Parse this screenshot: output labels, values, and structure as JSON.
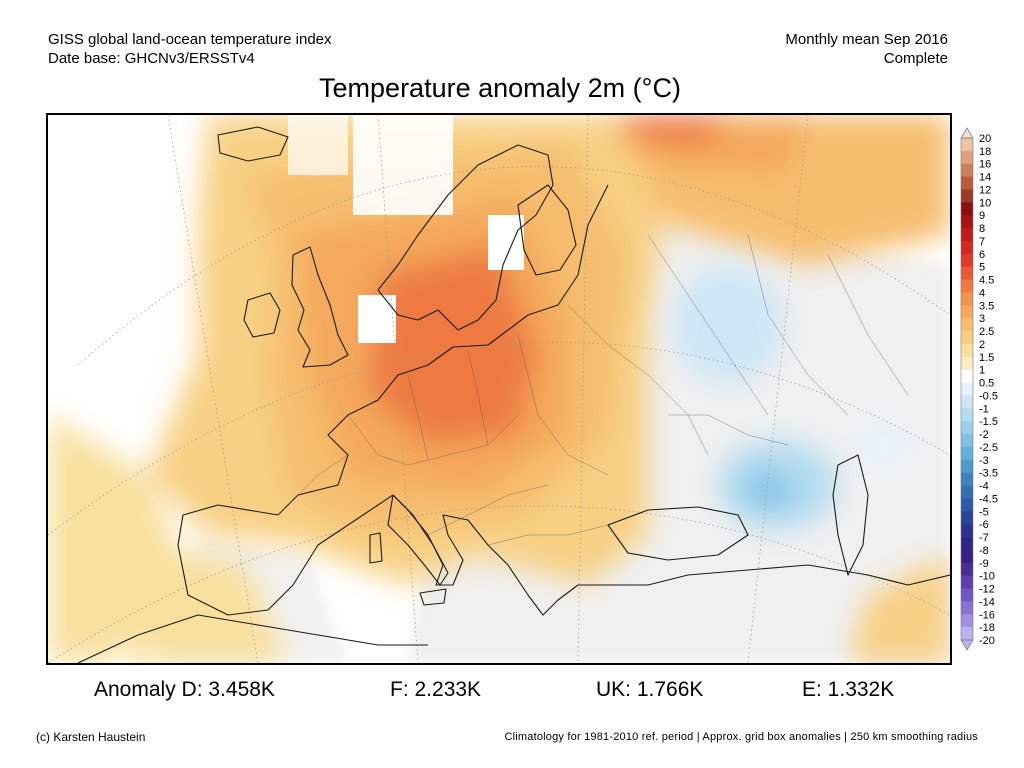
{
  "header": {
    "left_line1": "GISS global land-ocean temperature index",
    "left_line2": "Date base: GHCNv3/ERSSTv4",
    "right_line1": "Monthly mean Sep 2016",
    "right_line2": "Complete"
  },
  "title": "Temperature anomaly 2m (°C)",
  "legend": {
    "labels": [
      "20",
      "18",
      "16",
      "14",
      "12",
      "10",
      "9",
      "8",
      "7",
      "6",
      "5",
      "4.5",
      "4",
      "3.5",
      "3",
      "2.5",
      "2",
      "1.5",
      "1",
      "0.5",
      "-0.5",
      "-1",
      "-1.5",
      "-2",
      "-2.5",
      "-3",
      "-3.5",
      "-4",
      "-4.5",
      "-5",
      "-6",
      "-7",
      "-8",
      "-9",
      "-10",
      "-12",
      "-14",
      "-16",
      "-18",
      "-20"
    ],
    "colors": [
      "#f7dccd",
      "#efc3a7",
      "#e2a180",
      "#cf7e5c",
      "#b85c3c",
      "#9c3c22",
      "#8a0f0f",
      "#a81414",
      "#c01c1c",
      "#d22a22",
      "#e03a2a",
      "#e85a36",
      "#ee7a42",
      "#f2944e",
      "#f4a95c",
      "#f6bd6e",
      "#f8d084",
      "#f9e09e",
      "#faedc4",
      "#ffffff",
      "#e6f2fb",
      "#cde6f6",
      "#b4dcf2",
      "#9bd0ec",
      "#80c2e3",
      "#66afd8",
      "#4e9acb",
      "#3f84bd",
      "#356fb0",
      "#2d58a2",
      "#2b4596",
      "#2c338a",
      "#31267f",
      "#3b1f80",
      "#4a2d94",
      "#5c40aa",
      "#7057c0",
      "#8872d3",
      "#a291e2",
      "#bdb2ee"
    ]
  },
  "stats": [
    {
      "label": "Anomaly D: 3.458K"
    },
    {
      "label": "F: 2.233K"
    },
    {
      "label": "UK: 1.766K"
    },
    {
      "label": "E: 1.332K"
    }
  ],
  "footer": {
    "credit": "(c) Karsten Haustein",
    "note": "Climatology for 1981-2010 ref. period | Approx. grid box anomalies | 250 km smoothing radius"
  }
}
